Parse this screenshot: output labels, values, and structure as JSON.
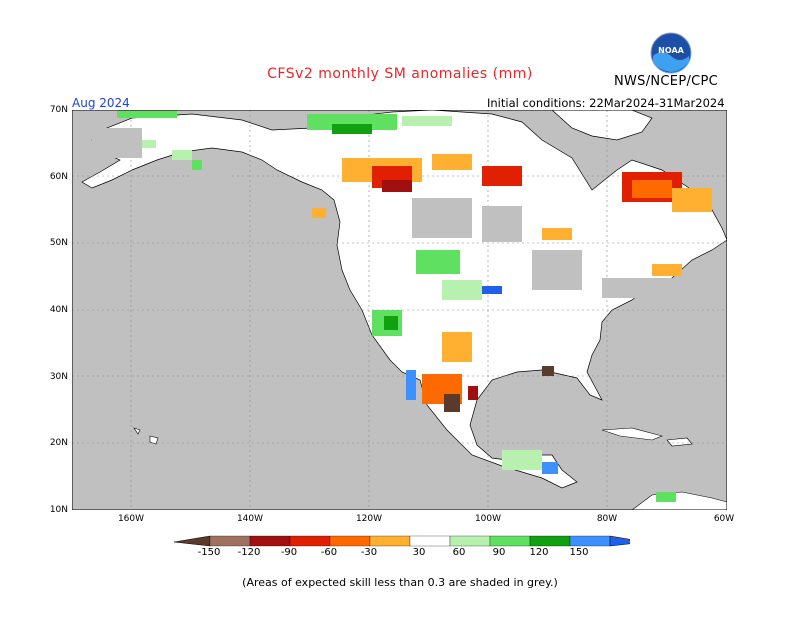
{
  "header": {
    "title": "CFSv2 monthly SM anomalies (mm)",
    "agency": "NWS/NCEP/CPC",
    "logo_text": "NOAA",
    "month": "Aug 2024",
    "initial_conditions": "Initial conditions: 22Mar2024-31Mar2024"
  },
  "axes": {
    "lat_labels": [
      "70N",
      "60N",
      "50N",
      "40N",
      "30N",
      "20N",
      "10N"
    ],
    "lon_labels": [
      "160W",
      "140W",
      "120W",
      "100W",
      "80W",
      "60W"
    ]
  },
  "legend": {
    "labels": [
      "-150",
      "-120",
      "-90",
      "-60",
      "-30",
      "30",
      "60",
      "90",
      "120",
      "150"
    ],
    "colors": [
      "#5a3a2a",
      "#a07060",
      "#a01010",
      "#e02000",
      "#ff6a00",
      "#ffb030",
      "#ffffff",
      "#b8f0b0",
      "#60e060",
      "#10a010",
      "#3c90ff",
      "#2060e8"
    ]
  },
  "colors": {
    "land": "#ffffff",
    "ocean_low_skill": "#c0c0c0",
    "title": "#e8262b",
    "month": "#2244cc"
  },
  "footnote": "(Areas of expected skill less than 0.3 are shaded in grey.)"
}
